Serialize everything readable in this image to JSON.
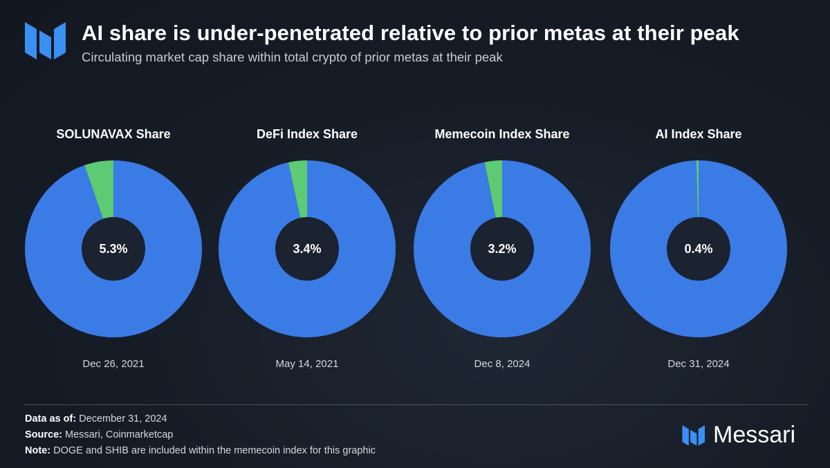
{
  "header": {
    "title": "AI share is under-penetrated relative to prior metas at their peak",
    "subtitle": "Circulating market cap share within total crypto of prior metas at their peak"
  },
  "colors": {
    "main": "#3a7be6",
    "share": "#5ccb73",
    "hole": "#1b2230",
    "logo": "#3a8ff2"
  },
  "chart_data": [
    {
      "type": "pie",
      "title": "SOLUNAVAX Share",
      "value": 5.3,
      "label": "5.3%",
      "date": "Dec 26, 2021"
    },
    {
      "type": "pie",
      "title": "DeFi Index Share",
      "value": 3.4,
      "label": "3.4%",
      "date": "May 14, 2021"
    },
    {
      "type": "pie",
      "title": "Memecoin Index Share",
      "value": 3.2,
      "label": "3.2%",
      "date": "Dec 8, 2024"
    },
    {
      "type": "pie",
      "title": "AI Index Share",
      "value": 0.4,
      "label": "0.4%",
      "date": "Dec 31, 2024"
    }
  ],
  "footer": {
    "data_as_of_label": "Data as of:",
    "data_as_of_value": "December 31, 2024",
    "source_label": "Source:",
    "source_value": "Messari, Coinmarketcap",
    "note_label": "Note:",
    "note_value": "DOGE and SHIB are included within the memecoin index for this graphic",
    "brand": "Messari"
  },
  "icons": {
    "logo": "messari-logo-icon"
  }
}
